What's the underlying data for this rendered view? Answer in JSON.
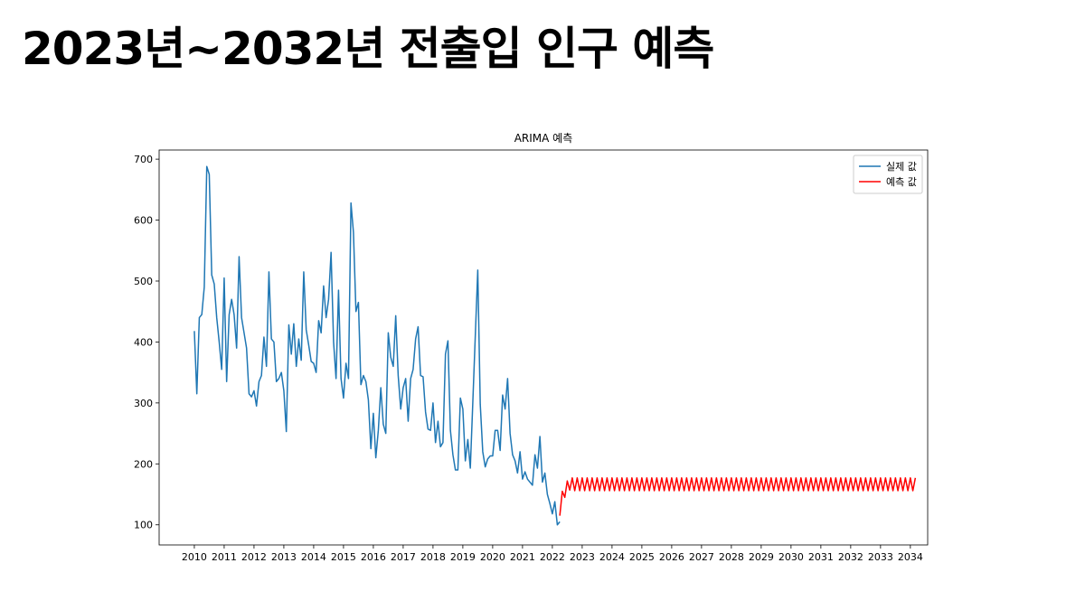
{
  "page_title": "2023년~2032년 전출입 인구 예측",
  "chart_data": {
    "type": "line",
    "title": "ARIMA 예측",
    "xlim": [
      2008.82,
      2034.58
    ],
    "ylim": [
      67,
      715
    ],
    "xticks": [
      2010,
      2011,
      2012,
      2013,
      2014,
      2015,
      2016,
      2017,
      2018,
      2019,
      2020,
      2021,
      2022,
      2023,
      2024,
      2025,
      2026,
      2027,
      2028,
      2029,
      2030,
      2031,
      2032,
      2033,
      2034
    ],
    "yticks": [
      100,
      200,
      300,
      400,
      500,
      600,
      700
    ],
    "grid": false,
    "legend": "upper right",
    "series": [
      {
        "name": "실제 값",
        "color": "#1f77b4",
        "x": [
          2010,
          2010.083,
          2010.167,
          2010.25,
          2010.333,
          2010.417,
          2010.5,
          2010.583,
          2010.667,
          2010.75,
          2010.833,
          2010.917,
          2011,
          2011.083,
          2011.167,
          2011.25,
          2011.333,
          2011.417,
          2011.5,
          2011.583,
          2011.667,
          2011.75,
          2011.833,
          2011.917,
          2012,
          2012.083,
          2012.167,
          2012.25,
          2012.333,
          2012.417,
          2012.5,
          2012.583,
          2012.667,
          2012.75,
          2012.833,
          2012.917,
          2013,
          2013.083,
          2013.167,
          2013.25,
          2013.333,
          2013.417,
          2013.5,
          2013.583,
          2013.667,
          2013.75,
          2013.833,
          2013.917,
          2014,
          2014.083,
          2014.167,
          2014.25,
          2014.333,
          2014.417,
          2014.5,
          2014.583,
          2014.667,
          2014.75,
          2014.833,
          2014.917,
          2015,
          2015.083,
          2015.167,
          2015.25,
          2015.333,
          2015.417,
          2015.5,
          2015.583,
          2015.667,
          2015.75,
          2015.833,
          2015.917,
          2016,
          2016.083,
          2016.167,
          2016.25,
          2016.333,
          2016.417,
          2016.5,
          2016.583,
          2016.667,
          2016.75,
          2016.833,
          2016.917,
          2017,
          2017.083,
          2017.167,
          2017.25,
          2017.333,
          2017.417,
          2017.5,
          2017.583,
          2017.667,
          2017.75,
          2017.833,
          2017.917,
          2018,
          2018.083,
          2018.167,
          2018.25,
          2018.333,
          2018.417,
          2018.5,
          2018.583,
          2018.667,
          2018.75,
          2018.833,
          2018.917,
          2019,
          2019.083,
          2019.167,
          2019.25,
          2019.333,
          2019.417,
          2019.5,
          2019.583,
          2019.667,
          2019.75,
          2019.833,
          2019.917,
          2020,
          2020.083,
          2020.167,
          2020.25,
          2020.333,
          2020.417,
          2020.5,
          2020.583,
          2020.667,
          2020.75,
          2020.833,
          2020.917,
          2021,
          2021.083,
          2021.167,
          2021.25,
          2021.333,
          2021.417,
          2021.5,
          2021.583,
          2021.667,
          2021.75,
          2021.833,
          2021.917,
          2022,
          2022.083,
          2022.167,
          2022.25
        ],
        "values": [
          418,
          315,
          440,
          445,
          490,
          688,
          675,
          510,
          495,
          440,
          400,
          355,
          505,
          335,
          445,
          470,
          445,
          390,
          540,
          440,
          415,
          390,
          315,
          310,
          320,
          295,
          335,
          345,
          408,
          360,
          515,
          405,
          400,
          335,
          340,
          350,
          320,
          253,
          428,
          380,
          430,
          360,
          405,
          370,
          515,
          420,
          395,
          368,
          365,
          350,
          435,
          415,
          492,
          440,
          470,
          547,
          400,
          340,
          485,
          340,
          308,
          365,
          340,
          628,
          580,
          450,
          465,
          330,
          345,
          335,
          305,
          225,
          283,
          210,
          255,
          325,
          265,
          250,
          415,
          375,
          360,
          443,
          345,
          290,
          325,
          340,
          270,
          340,
          355,
          405,
          425,
          345,
          343,
          285,
          257,
          255,
          300,
          235,
          270,
          228,
          235,
          380,
          402,
          255,
          215,
          190,
          190,
          308,
          290,
          205,
          240,
          193,
          300,
          410,
          518,
          298,
          220,
          195,
          208,
          213,
          213,
          255,
          255,
          222,
          313,
          290,
          340,
          250,
          215,
          205,
          185,
          220,
          175,
          187,
          175,
          170,
          165,
          215,
          193,
          245,
          170,
          185,
          150,
          135,
          118,
          138,
          100,
          105
        ]
      },
      {
        "name": "예측 값",
        "color": "#ff0000",
        "x": [
          2022.25,
          2022.333,
          2022.417,
          2022.5,
          2022.583,
          2022.667,
          2022.75,
          2022.833,
          2022.917,
          2023,
          2023.083,
          2023.167,
          2023.25,
          2023.333,
          2023.417,
          2023.5,
          2023.583,
          2023.667,
          2023.75,
          2023.833,
          2023.917,
          2024,
          2024.083,
          2024.167,
          2024.25,
          2024.333,
          2024.417,
          2024.5,
          2024.583,
          2024.667,
          2024.75,
          2024.833,
          2024.917,
          2025,
          2025.083,
          2025.167,
          2025.25,
          2025.333,
          2025.417,
          2025.5,
          2025.583,
          2025.667,
          2025.75,
          2025.833,
          2025.917,
          2026,
          2026.083,
          2026.167,
          2026.25,
          2026.333,
          2026.417,
          2026.5,
          2026.583,
          2026.667,
          2026.75,
          2026.833,
          2026.917,
          2027,
          2027.083,
          2027.167,
          2027.25,
          2027.333,
          2027.417,
          2027.5,
          2027.583,
          2027.667,
          2027.75,
          2027.833,
          2027.917,
          2028,
          2028.083,
          2028.167,
          2028.25,
          2028.333,
          2028.417,
          2028.5,
          2028.583,
          2028.667,
          2028.75,
          2028.833,
          2028.917,
          2029,
          2029.083,
          2029.167,
          2029.25,
          2029.333,
          2029.417,
          2029.5,
          2029.583,
          2029.667,
          2029.75,
          2029.833,
          2029.917,
          2030,
          2030.083,
          2030.167,
          2030.25,
          2030.333,
          2030.417,
          2030.5,
          2030.583,
          2030.667,
          2030.75,
          2030.833,
          2030.917,
          2031,
          2031.083,
          2031.167,
          2031.25,
          2031.333,
          2031.417,
          2031.5,
          2031.583,
          2031.667,
          2031.75,
          2031.833,
          2031.917,
          2032,
          2032.083,
          2032.167,
          2032.25,
          2032.333,
          2032.417,
          2032.5,
          2032.583,
          2032.667,
          2032.75,
          2032.833,
          2032.917,
          2033,
          2033.083,
          2033.167,
          2033.25,
          2033.333,
          2033.417,
          2033.5,
          2033.583,
          2033.667,
          2033.75,
          2033.833,
          2033.917,
          2034,
          2034.083,
          2034.167
        ],
        "values": [
          115,
          155,
          145,
          172,
          157,
          177,
          156,
          177,
          156,
          177,
          156,
          177,
          156,
          177,
          156,
          177,
          156,
          177,
          156,
          177,
          156,
          177,
          156,
          177,
          156,
          177,
          156,
          177,
          156,
          177,
          156,
          177,
          156,
          177,
          156,
          177,
          156,
          177,
          156,
          177,
          156,
          177,
          156,
          177,
          156,
          177,
          156,
          177,
          156,
          177,
          156,
          177,
          156,
          177,
          156,
          177,
          156,
          177,
          156,
          177,
          156,
          177,
          156,
          177,
          156,
          177,
          156,
          177,
          156,
          177,
          156,
          177,
          156,
          177,
          156,
          177,
          156,
          177,
          156,
          177,
          156,
          177,
          156,
          177,
          156,
          177,
          156,
          177,
          156,
          177,
          156,
          177,
          156,
          177,
          156,
          177,
          156,
          177,
          156,
          177,
          156,
          177,
          156,
          177,
          156,
          177,
          156,
          177,
          156,
          177,
          156,
          177,
          156,
          177,
          156,
          177,
          156,
          177,
          156,
          177,
          156,
          177,
          156,
          177,
          156,
          177,
          156,
          177,
          156,
          177,
          156,
          177,
          156,
          177,
          156,
          177,
          156,
          177,
          156,
          177,
          156,
          177,
          156,
          177
        ]
      }
    ]
  }
}
